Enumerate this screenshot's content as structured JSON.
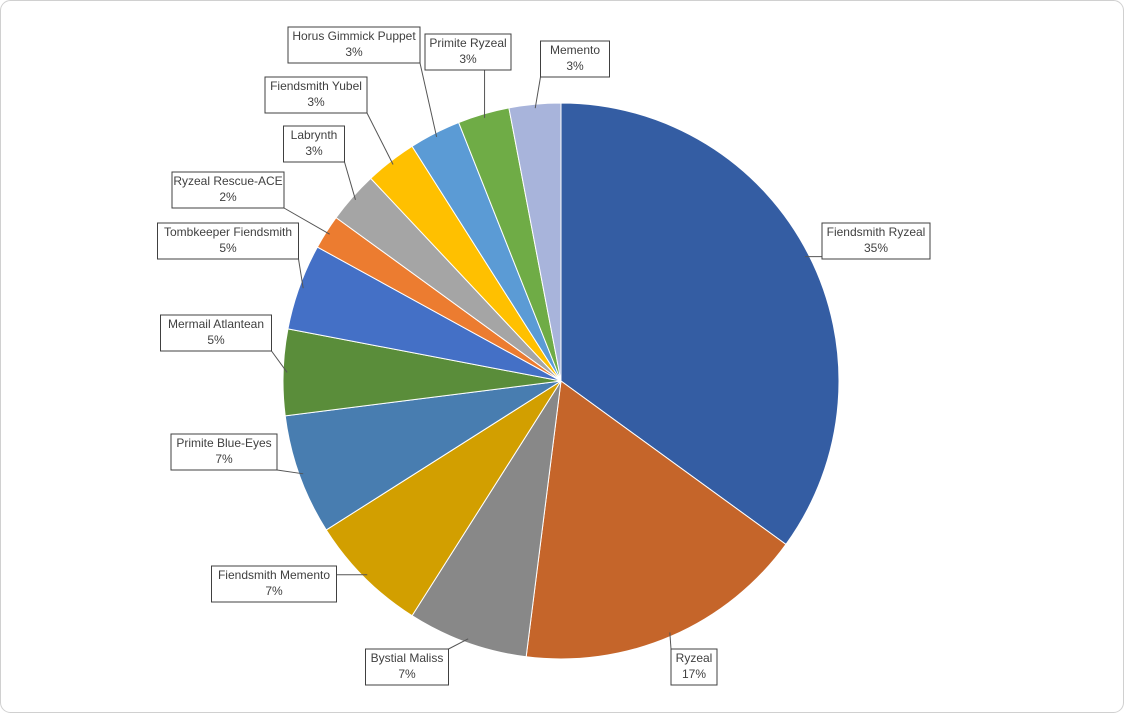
{
  "chart_data": {
    "type": "pie",
    "categories": [
      "Fiendsmith Ryzeal",
      "Ryzeal",
      "Bystial Maliss",
      "Fiendsmith Memento",
      "Primite Blue-Eyes",
      "Mermail Atlantean",
      "Tombkeeper Fiendsmith",
      "Ryzeal Rescue-ACE",
      "Labrynth",
      "Fiendsmith Yubel",
      "Horus Gimmick Puppet",
      "Primite Ryzeal",
      "Memento"
    ],
    "values": [
      35,
      17,
      7,
      7,
      7,
      5,
      5,
      2,
      3,
      3,
      3,
      3,
      3
    ],
    "value_labels": [
      "35%",
      "17%",
      "7%",
      "7%",
      "7%",
      "5%",
      "5%",
      "2%",
      "3%",
      "3%",
      "3%",
      "3%",
      "3%"
    ],
    "colors": [
      "#345da3",
      "#c5652a",
      "#888888",
      "#d29f00",
      "#487db0",
      "#5a8d3a",
      "#4470c6",
      "#ec7c30",
      "#a5a5a5",
      "#ffc000",
      "#5b9bd5",
      "#6fac46",
      "#a8b4db"
    ]
  }
}
